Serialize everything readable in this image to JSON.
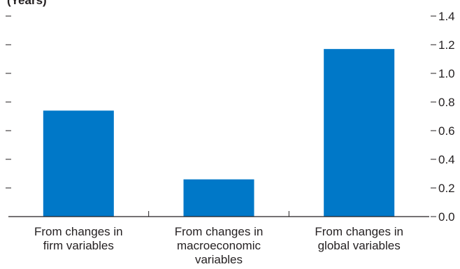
{
  "chart_data": {
    "type": "bar",
    "unit_label": "(Years)",
    "categories": [
      [
        "From changes in",
        "firm variables"
      ],
      [
        "From changes in",
        "macroeconomic",
        "variables"
      ],
      [
        "From changes in",
        "global variables"
      ]
    ],
    "values": [
      0.74,
      0.26,
      1.17
    ],
    "ylim": [
      0,
      1.4
    ],
    "yticks": [
      "0.0",
      "0.2",
      "0.4",
      "0.6",
      "0.8",
      "1.0",
      "1.2",
      "1.4"
    ],
    "bar_color": "#0078c8",
    "axis_color": "#231f20",
    "grid": false,
    "legend": "none"
  }
}
